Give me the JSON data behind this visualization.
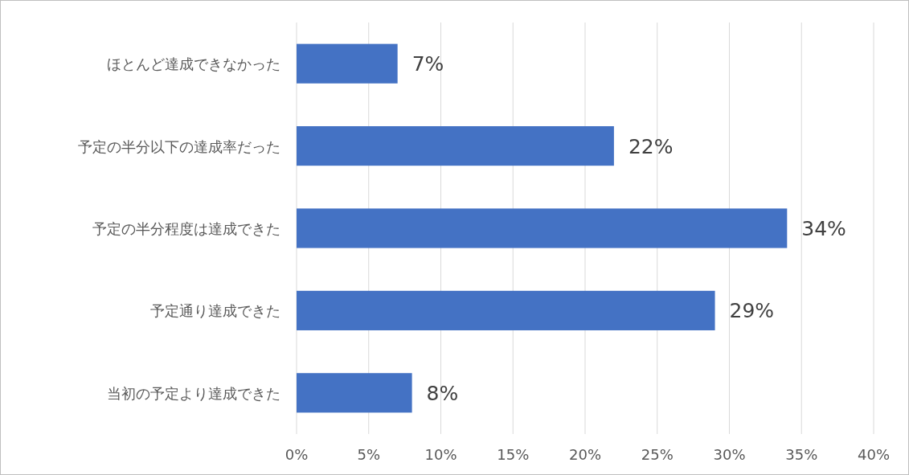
{
  "chart_data": {
    "type": "bar",
    "orientation": "horizontal",
    "categories": [
      "ほとんど達成できなかった",
      "予定の半分以下の達成率だった",
      "予定の半分程度は達成できた",
      "予定通り達成できた",
      "当初の予定より達成できた"
    ],
    "values": [
      7,
      22,
      34,
      29,
      8
    ],
    "value_labels": [
      "7%",
      "22%",
      "34%",
      "29%",
      "8%"
    ],
    "color": "#4472c4",
    "xlim": [
      0,
      40
    ],
    "xticks": [
      {
        "value": 0,
        "label": "0%"
      },
      {
        "value": 5,
        "label": "5%"
      },
      {
        "value": 10,
        "label": "10%"
      },
      {
        "value": 15,
        "label": "15%"
      },
      {
        "value": 20,
        "label": "20%"
      },
      {
        "value": 25,
        "label": "25%"
      },
      {
        "value": 30,
        "label": "30%"
      },
      {
        "value": 35,
        "label": "35%"
      },
      {
        "value": 40,
        "label": "40%"
      }
    ],
    "grid": "x"
  }
}
